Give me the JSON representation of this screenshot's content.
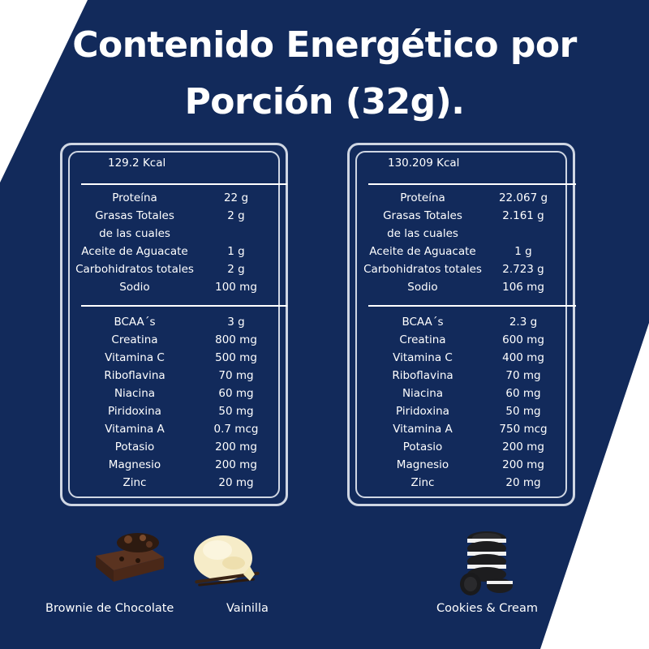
{
  "title_line1": "Contenido Energético por",
  "title_line2": "Porción (32g).",
  "colors": {
    "navy": "#122a5b",
    "white": "#ffffff",
    "panel_border": "#cfd6e3"
  },
  "panels": [
    {
      "kcal": "129.2 Kcal",
      "section1": [
        {
          "label": "Proteína",
          "value": "22 g"
        },
        {
          "label": "Grasas Totales",
          "value": "2 g"
        },
        {
          "label": "de las cuales",
          "value": ""
        },
        {
          "label": "Aceite de Aguacate",
          "value": "1 g"
        },
        {
          "label": "Carbohidratos totales",
          "value": "2 g"
        },
        {
          "label": "Sodio",
          "value": "100 mg"
        }
      ],
      "section2": [
        {
          "label": "BCAA´s",
          "value": "3 g"
        },
        {
          "label": "Creatina",
          "value": "800 mg"
        },
        {
          "label": "Vitamina C",
          "value": "500 mg"
        },
        {
          "label": "Riboflavina",
          "value": "70 mg"
        },
        {
          "label": "Niacina",
          "value": "60 mg"
        },
        {
          "label": "Piridoxina",
          "value": "50 mg"
        },
        {
          "label": "Vitamina A",
          "value": "0.7 mcg"
        },
        {
          "label": "Potasio",
          "value": "200 mg"
        },
        {
          "label": "Magnesio",
          "value": "200 mg"
        },
        {
          "label": "Zinc",
          "value": "20 mg"
        }
      ]
    },
    {
      "kcal": "130.209 Kcal",
      "section1": [
        {
          "label": "Proteína",
          "value": "22.067 g"
        },
        {
          "label": "Grasas Totales",
          "value": "2.161 g"
        },
        {
          "label": "de las cuales",
          "value": ""
        },
        {
          "label": "Aceite de Aguacate",
          "value": "1 g"
        },
        {
          "label": "Carbohidratos totales",
          "value": "2.723 g"
        },
        {
          "label": "Sodio",
          "value": "106 mg"
        }
      ],
      "section2": [
        {
          "label": "BCAA´s",
          "value": "2.3 g"
        },
        {
          "label": "Creatina",
          "value": "600 mg"
        },
        {
          "label": "Vitamina C",
          "value": "400 mg"
        },
        {
          "label": "Riboflavina",
          "value": "70 mg"
        },
        {
          "label": "Niacina",
          "value": "60 mg"
        },
        {
          "label": "Piridoxina",
          "value": "50 mg"
        },
        {
          "label": "Vitamina A",
          "value": "750 mcg"
        },
        {
          "label": "Potasio",
          "value": "200 mg"
        },
        {
          "label": "Magnesio",
          "value": "200 mg"
        },
        {
          "label": "Zinc",
          "value": "20 mg"
        }
      ]
    }
  ],
  "flavors": [
    {
      "name": "Brownie de Chocolate",
      "icon": "brownie-image"
    },
    {
      "name": "Vainilla",
      "icon": "vanilla-ice-cream-image"
    },
    {
      "name": "Cookies & Cream",
      "icon": "cookies-stack-image"
    }
  ]
}
